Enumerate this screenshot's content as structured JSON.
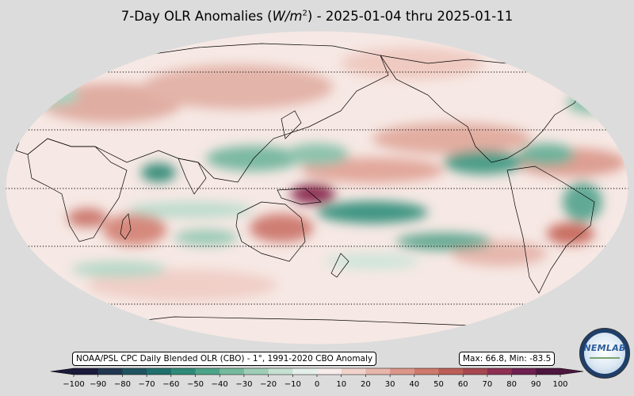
{
  "title": {
    "prefix": "7-Day OLR Anomalies (",
    "unit_var": "W/m",
    "unit_exp": "2",
    "suffix": ") - 2025-01-04 thru 2025-01-11"
  },
  "source_label": "NOAA/PSL CPC Daily Blended OLR (CBO) - 1°, 1991-2020 CBO Anomaly",
  "stats": {
    "max_label": "Max:",
    "max": "66.8",
    "min_label": "Min:",
    "min": "-83.5"
  },
  "logo": {
    "text": "NEMLAB",
    "description": "NOAA laboratory logo seal"
  },
  "map": {
    "projection": "Robinson, Pacific-centered",
    "parallels_dotted": [
      "60N",
      "30N",
      "0",
      "30S",
      "60S"
    ],
    "colors": {
      "ocean_background": "#f6e8e4",
      "positive_anomaly": "#c2665a",
      "strong_positive": "#7a1f4e",
      "negative_anomaly": "#3d9b80",
      "strong_negative": "#0f5a58",
      "land_outline": "#000000"
    }
  },
  "colorbar": {
    "min": -100,
    "max": 100,
    "step": 10,
    "tick_labels": [
      "−100",
      "−90",
      "−80",
      "−70",
      "−60",
      "−50",
      "−40",
      "−30",
      "−20",
      "−10",
      "0",
      "10",
      "20",
      "30",
      "40",
      "50",
      "60",
      "70",
      "80",
      "90",
      "100"
    ],
    "colors": [
      "#1b1a3a",
      "#21364f",
      "#1f5460",
      "#206f6c",
      "#2f8a78",
      "#4ea489",
      "#75ba9e",
      "#9fceb7",
      "#c6e1d2",
      "#e6f0ea",
      "#f8ecea",
      "#f1d3cc",
      "#e7b6ab",
      "#dc978a",
      "#cd7a6d",
      "#bc5e57",
      "#a64750",
      "#8d3051",
      "#6e2050",
      "#4c163f"
    ]
  }
}
